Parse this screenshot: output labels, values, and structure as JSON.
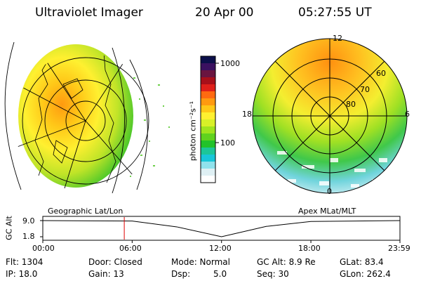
{
  "header": {
    "title": "Ultraviolet Imager",
    "date": "20 Apr 00",
    "time": "05:27:55 UT"
  },
  "colorbar": {
    "unit_label": "photon cm⁻²s⁻¹",
    "ticks": [
      "1000",
      "100"
    ],
    "colors": [
      "#0b0f4a",
      "#3a1060",
      "#6a1540",
      "#a8101a",
      "#e0201a",
      "#ff6a10",
      "#ff9a10",
      "#ffc818",
      "#fff030",
      "#d8f028",
      "#a0e41e",
      "#60d21e",
      "#22c22a",
      "#1cc698",
      "#18c6d8",
      "#90e2ec",
      "#dff0f4",
      "#ffffff"
    ]
  },
  "polar_plot": {
    "mlt_labels": [
      "12",
      "18",
      "6",
      "0"
    ],
    "lat_labels": [
      "60",
      "70",
      "80"
    ]
  },
  "timeline": {
    "left_caption": "Geographic Lat/Lon",
    "right_caption": "Apex MLat/MLT",
    "axis_label": "GC Alt",
    "y_ticks": [
      "9.0",
      "1.8"
    ],
    "x_ticks": [
      "00:00",
      "06:00",
      "12:00",
      "18:00",
      "23:59"
    ],
    "current_time_hours": 5.47,
    "altitude_track": [
      {
        "time_h": 0,
        "alt_re": 9.0
      },
      {
        "time_h": 6,
        "alt_re": 8.8
      },
      {
        "time_h": 9,
        "alt_re": 6.2
      },
      {
        "time_h": 12,
        "alt_re": 1.8
      },
      {
        "time_h": 15,
        "alt_re": 6.4
      },
      {
        "time_h": 18,
        "alt_re": 8.6
      },
      {
        "time_h": 23.98,
        "alt_re": 9.0
      }
    ]
  },
  "status": {
    "flt": "Flt: 1304",
    "ip": "IP: 18.0",
    "door": "Door: Closed",
    "gain": "Gain: 13",
    "mode": "Mode: Normal",
    "dsp_label": "Dsp:",
    "dsp_value": "5.0",
    "gc_alt": "GC Alt: 8.9 Re",
    "seq": "Seq: 30",
    "glat": "GLat:  83.4",
    "glon": "GLon: 262.4"
  }
}
